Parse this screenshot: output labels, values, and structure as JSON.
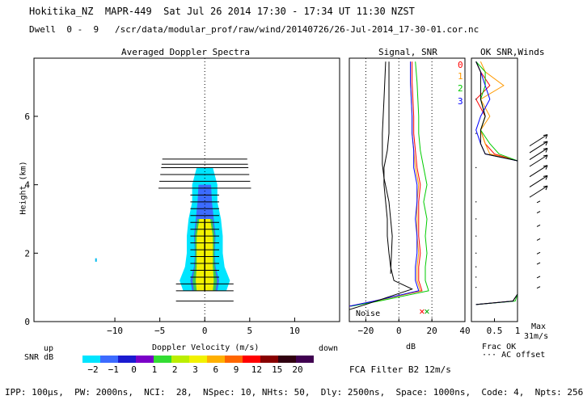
{
  "header": {
    "title": "Hokitika_NZ  MAPR-449  Sat Jul 26 2014 17:30 - 17:34 UT 11:30 NZST",
    "dwell": "Dwell  0 -  9   /scr/data/modular_prof/raw/wind/20140726/26-Jul-2014_17-30-01.cor.nc"
  },
  "panels": {
    "spectra_title": "Averaged Doppler Spectra",
    "signal_title": "Signal, SNR",
    "winds_title": "OK SNR,Winds"
  },
  "labels": {
    "y_axis": "Height (km)",
    "x_axis": "Doppler Velocity (m/s)",
    "up": "up",
    "down": "down",
    "snr_db": "SNR dB",
    "db": "dB",
    "noise": "Noise",
    "frac_ok": "Frac OK",
    "ac_offset": "··· AC offset",
    "max_label": "Max",
    "max_value": "31m/s",
    "fca_filter": "FCA Filter B2 12m/s",
    "footer": "IPP: 100µs,  PW: 2000ns,  NCI:  28,  NSpec: 10, NHts: 50,  Dly: 2500ns,  Space: 1000ns,  Code: 4,  Npts: 256"
  },
  "legend": [
    {
      "label": "0",
      "color": "#ff0000"
    },
    {
      "label": "1",
      "color": "#ff9900"
    },
    {
      "label": "2",
      "color": "#00cc00"
    },
    {
      "label": "3",
      "color": "#0000ff"
    }
  ],
  "colorbar": {
    "colors": [
      "#00e5ff",
      "#3c6bff",
      "#1a1ad0",
      "#7a00c8",
      "#33dd33",
      "#bbee00",
      "#f2f200",
      "#ffb000",
      "#ff6600",
      "#ff0000",
      "#880000",
      "#300010",
      "#400050"
    ],
    "labels": [
      "-2",
      "-1",
      "0",
      "1",
      "2",
      "3",
      "6",
      "9",
      "12",
      "15",
      "20"
    ]
  },
  "chart_data": [
    {
      "type": "heatmap",
      "title": "Averaged Doppler Spectra",
      "xlabel": "Doppler Velocity (m/s)",
      "ylabel": "Height (km)",
      "xlim": [
        -19,
        15
      ],
      "ylim": [
        0,
        7.7
      ],
      "xticks": [
        -10,
        -5,
        0,
        5,
        10
      ],
      "yticks": [
        0,
        2,
        4,
        6
      ],
      "spectrum_width": [
        {
          "h": 0.9,
          "snr": [
            -2,
            1,
            20
          ],
          "w": [
            2.4,
            1.4,
            0.9
          ]
        },
        {
          "h": 1.2,
          "snr": [
            -2,
            1,
            20
          ],
          "w": [
            2.8,
            1.6,
            1.0
          ]
        },
        {
          "h": 1.6,
          "snr": [
            -2,
            1,
            20
          ],
          "w": [
            2.2,
            1.2,
            0.9
          ]
        },
        {
          "h": 2.0,
          "snr": [
            -2,
            1,
            20
          ],
          "w": [
            2.0,
            1.1,
            0.9
          ]
        },
        {
          "h": 2.5,
          "snr": [
            -2,
            1,
            20
          ],
          "w": [
            2.0,
            1.2,
            0.9
          ]
        },
        {
          "h": 3.0,
          "snr": [
            -2,
            0,
            3
          ],
          "w": [
            1.8,
            1.0,
            0.6
          ]
        },
        {
          "h": 3.5,
          "snr": [
            -2,
            0
          ],
          "w": [
            1.4,
            0.8
          ]
        },
        {
          "h": 4.0,
          "snr": [
            -2,
            0
          ],
          "w": [
            1.4,
            0.7
          ]
        },
        {
          "h": 4.5,
          "snr": [
            -2
          ],
          "w": [
            0.9
          ]
        }
      ],
      "bar_heights_km": [
        0.6,
        0.9,
        1.1,
        1.3,
        1.5,
        1.7,
        1.9,
        2.1,
        2.3,
        2.5,
        2.7,
        2.9,
        3.1,
        3.3,
        3.5,
        3.7,
        3.9,
        4.1,
        4.3,
        4.5,
        4.6,
        4.75
      ]
    },
    {
      "type": "line",
      "title": "Signal, SNR",
      "xlabel": "dB",
      "xlim": [
        -30,
        40
      ],
      "xticks": [
        -20,
        0,
        20,
        40
      ],
      "ylim": [
        0,
        7.7
      ],
      "series": [
        {
          "name": "0",
          "color": "#ff0000",
          "x": [
            -30,
            -15,
            14,
            12,
            12,
            13,
            12,
            12,
            12,
            13,
            11,
            10,
            9,
            9,
            8,
            8
          ],
          "y": [
            0.45,
            0.6,
            0.9,
            1.2,
            1.6,
            2.0,
            2.5,
            3.0,
            3.5,
            4.0,
            4.5,
            5.0,
            5.5,
            6.0,
            7.0,
            7.6
          ]
        },
        {
          "name": "1",
          "color": "#ff9900",
          "x": [
            -30,
            -14,
            13,
            11,
            11,
            12,
            11,
            11,
            11,
            12,
            10,
            9,
            8,
            8,
            7,
            7
          ],
          "y": [
            0.45,
            0.6,
            0.9,
            1.2,
            1.6,
            2.0,
            2.5,
            3.0,
            3.5,
            4.0,
            4.5,
            5.0,
            5.5,
            6.0,
            7.0,
            7.6
          ]
        },
        {
          "name": "2",
          "color": "#00cc00",
          "x": [
            -29,
            -12,
            18,
            16,
            16,
            17,
            16,
            17,
            15,
            17,
            15,
            13,
            12,
            12,
            11,
            10
          ],
          "y": [
            0.45,
            0.6,
            0.9,
            1.2,
            1.6,
            2.0,
            2.5,
            3.0,
            3.5,
            4.0,
            4.5,
            5.0,
            5.5,
            6.0,
            7.0,
            7.6
          ]
        },
        {
          "name": "3",
          "color": "#0000ff",
          "x": [
            -30,
            -15,
            12,
            10,
            10,
            11,
            11,
            10,
            11,
            11,
            9,
            9,
            8,
            8,
            7,
            7
          ],
          "y": [
            0.45,
            0.6,
            0.9,
            1.2,
            1.6,
            2.0,
            2.5,
            3.0,
            3.5,
            4.0,
            4.5,
            5.0,
            5.5,
            6.0,
            7.0,
            7.6
          ]
        },
        {
          "name": "noise",
          "color": "#000000",
          "x": [
            -30,
            -20,
            8,
            -3,
            -5,
            -6,
            -7,
            -7,
            -8,
            -9,
            -9,
            -7,
            -6,
            -6,
            -6,
            -6
          ],
          "y": [
            0.35,
            0.5,
            0.95,
            1.2,
            1.6,
            2.0,
            2.5,
            3.0,
            3.5,
            4.0,
            4.5,
            5.0,
            5.5,
            6.0,
            7.0,
            7.6
          ]
        }
      ]
    },
    {
      "type": "line",
      "title": "OK SNR,Winds",
      "xlabel": "Frac OK",
      "xlim": [
        0,
        1
      ],
      "xticks": [
        0.5,
        1
      ],
      "xtick_labels": [
        "0.5",
        "1"
      ],
      "ylim": [
        0,
        7.7
      ],
      "series": [
        {
          "name": "0",
          "color": "#ff0000",
          "x": [
            0.1,
            0.9,
            1,
            1,
            1,
            1,
            1,
            1,
            0.5,
            0.3,
            0.2,
            0.3,
            0.1,
            0.4,
            0.2,
            0.1
          ],
          "y": [
            0.5,
            0.6,
            0.8,
            1.5,
            2.5,
            3.5,
            4.2,
            4.7,
            4.9,
            5.2,
            5.6,
            6.0,
            6.5,
            6.9,
            7.3,
            7.6
          ]
        },
        {
          "name": "1",
          "color": "#ff9900",
          "x": [
            0.1,
            0.9,
            1,
            1,
            1,
            1,
            1,
            1,
            0.4,
            0.3,
            0.2,
            0.4,
            0.2,
            0.7,
            0.3,
            0.2
          ],
          "y": [
            0.5,
            0.6,
            0.8,
            1.5,
            2.5,
            3.5,
            4.2,
            4.7,
            4.9,
            5.2,
            5.6,
            6.0,
            6.5,
            6.9,
            7.3,
            7.6
          ]
        },
        {
          "name": "2",
          "color": "#00cc00",
          "x": [
            0.1,
            0.95,
            1,
            1,
            1,
            1,
            1,
            1,
            0.6,
            0.4,
            0.2,
            0.3,
            0.2,
            0.3,
            0.3,
            0.1
          ],
          "y": [
            0.5,
            0.6,
            0.8,
            1.5,
            2.5,
            3.5,
            4.2,
            4.7,
            4.9,
            5.2,
            5.6,
            6.0,
            6.5,
            6.9,
            7.3,
            7.6
          ]
        },
        {
          "name": "3",
          "color": "#0000ff",
          "x": [
            0.1,
            0.9,
            1,
            1,
            1,
            1,
            1,
            1,
            0.3,
            0.2,
            0.1,
            0.2,
            0.4,
            0.3,
            0.2,
            0.1
          ],
          "y": [
            0.5,
            0.6,
            0.8,
            1.5,
            2.5,
            3.5,
            4.2,
            4.7,
            4.9,
            5.2,
            5.6,
            6.0,
            6.5,
            6.9,
            7.3,
            7.6
          ]
        },
        {
          "name": "ok",
          "color": "#000000",
          "x": [
            0.1,
            0.9,
            1,
            1,
            1,
            1,
            1,
            1,
            0.3,
            0.2,
            0.2,
            0.3,
            0.2,
            0.2,
            0.2,
            0.1
          ],
          "y": [
            0.5,
            0.6,
            0.8,
            1.5,
            2.5,
            3.5,
            4.2,
            4.7,
            4.9,
            5.2,
            5.6,
            6.0,
            6.5,
            6.9,
            7.3,
            7.6
          ]
        }
      ],
      "wind_barb_heights_km": [
        1.0,
        1.3,
        1.7,
        2.0,
        2.4,
        2.8,
        3.2,
        3.5,
        3.8,
        4.1,
        4.4,
        4.7,
        4.9,
        5.1,
        5.3
      ]
    }
  ]
}
